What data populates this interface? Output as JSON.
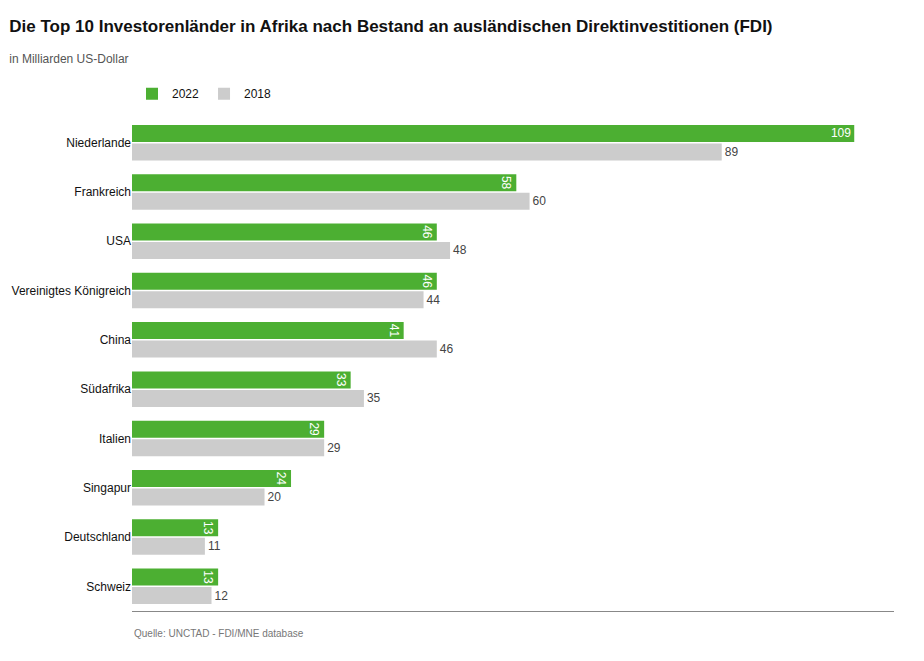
{
  "chart_data": {
    "type": "bar",
    "orientation": "horizontal",
    "title": "Die Top 10 Investorenländer in Afrika nach Bestand an ausländischen Direktinvestitionen (FDI)",
    "subtitle": "in Milliarden US-Dollar",
    "annotations": [
      "Quelle: UNCTAD - FDI/MNE database"
    ],
    "categories": [
      "Niederlande",
      "Frankreich",
      "USA",
      "Vereinigtes Königreich",
      "China",
      "Südafrika",
      "Italien",
      "Singapur",
      "Deutschland",
      "Schweiz"
    ],
    "series": [
      {
        "name": "2022",
        "color": "#4caf32",
        "values": [
          109,
          58,
          46,
          46,
          41,
          33,
          29,
          24,
          13,
          13
        ]
      },
      {
        "name": "2018",
        "color": "#cccccc",
        "values": [
          89,
          60,
          48,
          44,
          46,
          35,
          29,
          20,
          11,
          12
        ]
      }
    ],
    "xlim": [
      0,
      115
    ],
    "grid": false,
    "data_labels": true,
    "tick_labels": "y",
    "legend": "top left"
  }
}
